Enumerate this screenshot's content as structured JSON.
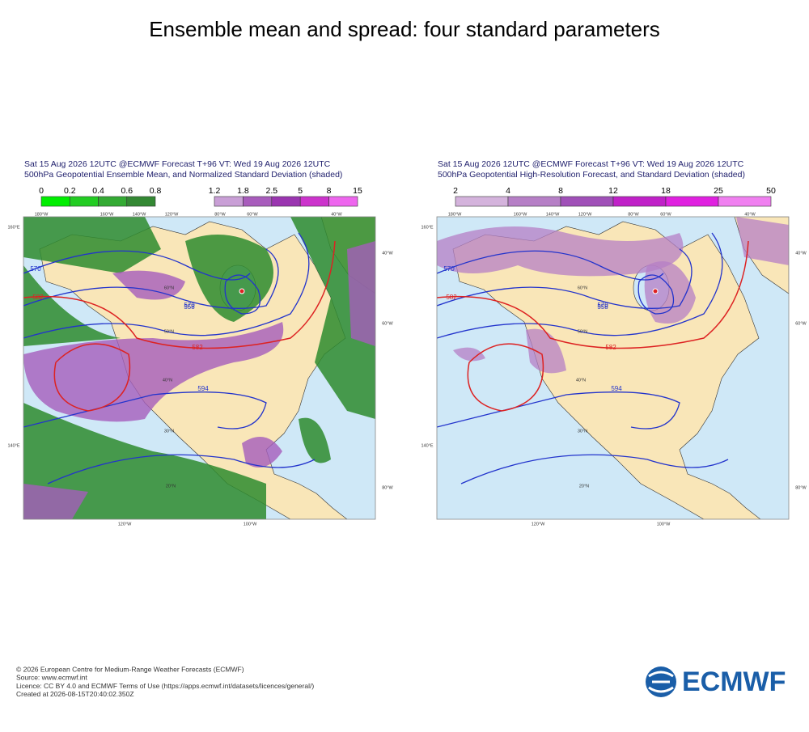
{
  "title": "Ensemble mean and spread: four standard parameters",
  "panels": [
    {
      "header": [
        "Sat 15 Aug 2026 12UTC @ECMWF Forecast T+96 VT: Wed 19 Aug 2026 12UTC",
        "500hPa Geopotential Ensemble Mean, and Normalized Standard Deviation (shaded)"
      ],
      "colorbars": [
        {
          "labels": [
            0,
            0.2,
            0.4,
            0.6,
            0.8
          ],
          "colors": [
            "#00ee00",
            "#22cc22",
            "#33aa33",
            "#338833"
          ]
        },
        {
          "labels": [
            1.2,
            1.8,
            2.5,
            5,
            8,
            15
          ],
          "colors": [
            "#c99fd6",
            "#a85cbc",
            "#9a35b0",
            "#cc33cc",
            "#ee66ee"
          ]
        }
      ],
      "map_labels": [
        "558",
        "570",
        "570",
        "582",
        "582",
        "594",
        "60°N",
        "50°N",
        "40°N",
        "30°N",
        "20°N",
        "180°W",
        "160°W",
        "140°W",
        "120°W",
        "80°W",
        "60°W",
        "40°W",
        "160°E",
        "140°E",
        "40°W",
        "60°W",
        "80°W",
        "120°W",
        "100°W"
      ]
    },
    {
      "header": [
        "Sat 15 Aug 2026 12UTC @ECMWF Forecast T+96 VT: Wed 19 Aug 2026 12UTC",
        "500hPa Geopotential High-Resolution Forecast, and Standard Deviation (shaded)"
      ],
      "colorbars": [
        {
          "labels": [
            2,
            4,
            8,
            12,
            18,
            25,
            50
          ],
          "colors": [
            "#d4b3dc",
            "#b67fc6",
            "#a050b8",
            "#c020c8",
            "#e020e0",
            "#f080f0"
          ]
        }
      ],
      "map_labels": [
        "558",
        "570",
        "570",
        "582",
        "582",
        "594",
        "60°N",
        "50°N",
        "40°N",
        "30°N",
        "20°N",
        "180°W",
        "160°W",
        "140°W",
        "120°W",
        "80°W",
        "60°W",
        "40°W",
        "160°E",
        "140°E",
        "40°W",
        "60°W",
        "80°W",
        "120°W",
        "100°W"
      ]
    }
  ],
  "footer": [
    "© 2026 European Centre for Medium-Range Weather Forecasts (ECMWF)",
    "Source: www.ecmwf.int",
    "Licence: CC BY 4.0 and ECMWF Terms of Use (https://apps.ecmwf.int/datasets/licences/general/)",
    "Created at 2026-08-15T20:40:02.350Z"
  ],
  "logo": "ECMWF"
}
